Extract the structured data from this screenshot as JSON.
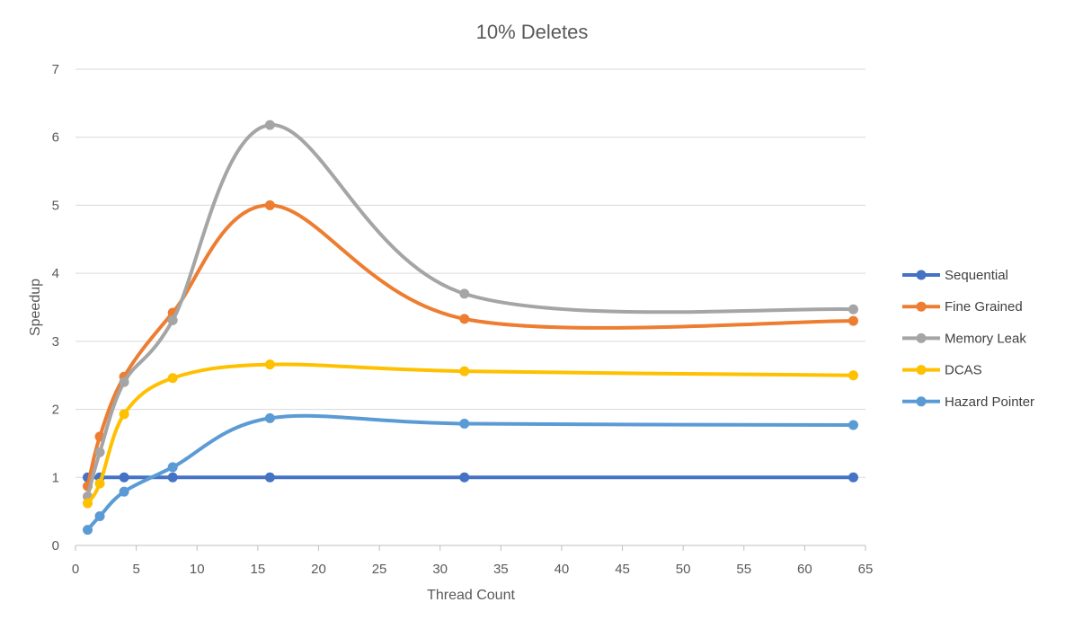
{
  "chart_data": {
    "type": "line",
    "title": "10% Deletes",
    "xlabel": "Thread Count",
    "ylabel": "Speedup",
    "xlim": [
      0,
      65
    ],
    "ylim": [
      0,
      7
    ],
    "x_ticks": [
      "0",
      "5",
      "10",
      "15",
      "20",
      "25",
      "30",
      "35",
      "40",
      "45",
      "50",
      "55",
      "60",
      "65"
    ],
    "y_ticks": [
      "0",
      "1",
      "2",
      "3",
      "4",
      "5",
      "6",
      "7"
    ],
    "grid": "horizontal",
    "legend_position": "right",
    "line_style": "smoothed",
    "x": [
      1,
      2,
      4,
      8,
      16,
      32,
      64
    ],
    "series": [
      {
        "name": "Sequential",
        "color": "#4472C4",
        "values": [
          1,
          1,
          1,
          1,
          1,
          1,
          1
        ]
      },
      {
        "name": "Fine Grained",
        "color": "#ED7D31",
        "values": [
          0.87,
          1.6,
          2.48,
          3.42,
          5.0,
          3.33,
          3.3
        ]
      },
      {
        "name": "Memory Leak",
        "color": "#A5A5A5",
        "values": [
          0.72,
          1.37,
          2.4,
          3.31,
          6.18,
          3.7,
          3.47
        ]
      },
      {
        "name": "DCAS",
        "color": "#FFC000",
        "values": [
          0.62,
          0.91,
          1.93,
          2.46,
          2.66,
          2.56,
          2.5
        ]
      },
      {
        "name": "Hazard Pointer",
        "color": "#5B9BD5",
        "values": [
          0.23,
          0.43,
          0.79,
          1.15,
          1.87,
          1.79,
          1.77
        ]
      }
    ]
  }
}
